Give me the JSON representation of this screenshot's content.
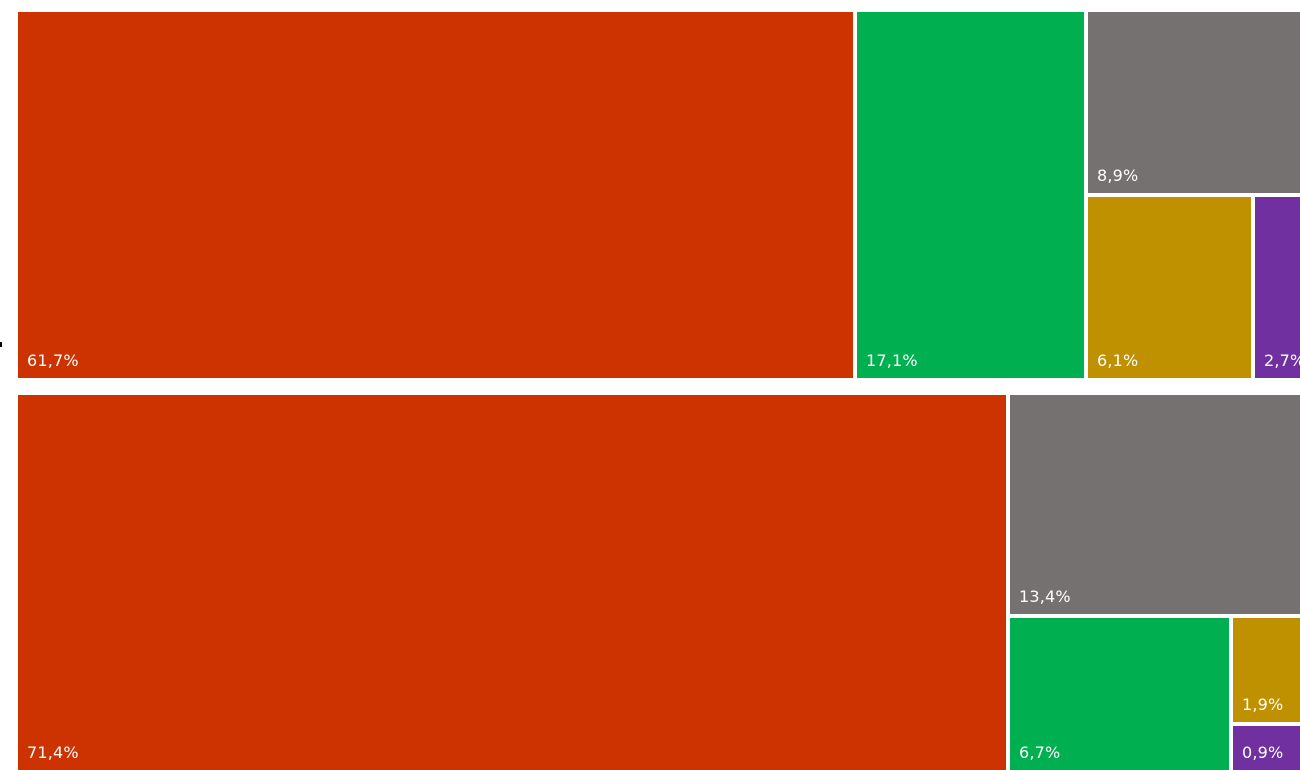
{
  "chart_data": [
    {
      "type": "treemap",
      "colors": {
        "red": "#CC3300",
        "green": "#00B050",
        "grey": "#767171",
        "gold": "#BF9000",
        "purple": "#7030A0"
      },
      "items": [
        {
          "id": "red",
          "value": 61.7,
          "label": "61,7%",
          "color": "#CC3300"
        },
        {
          "id": "green",
          "value": 17.1,
          "label": "17,1%",
          "color": "#00B050"
        },
        {
          "id": "grey",
          "value": 8.9,
          "label": "8,9%",
          "color": "#767171"
        },
        {
          "id": "gold",
          "value": 6.1,
          "label": "6,1%",
          "color": "#BF9000"
        },
        {
          "id": "purple",
          "value": 2.7,
          "label": "2,7%",
          "color": "#7030A0"
        }
      ]
    },
    {
      "type": "treemap",
      "colors": {
        "red": "#CC3300",
        "grey": "#767171",
        "green": "#00B050",
        "gold": "#BF9000",
        "purple": "#7030A0"
      },
      "items": [
        {
          "id": "red",
          "value": 71.4,
          "label": "71,4%",
          "color": "#CC3300"
        },
        {
          "id": "grey",
          "value": 13.4,
          "label": "13,4%",
          "color": "#767171"
        },
        {
          "id": "green",
          "value": 6.7,
          "label": "6,7%",
          "color": "#00B050"
        },
        {
          "id": "gold",
          "value": 1.9,
          "label": "1,9%",
          "color": "#BF9000"
        },
        {
          "id": "purple",
          "value": 0.9,
          "label": "0,9%",
          "color": "#7030A0"
        }
      ]
    }
  ]
}
